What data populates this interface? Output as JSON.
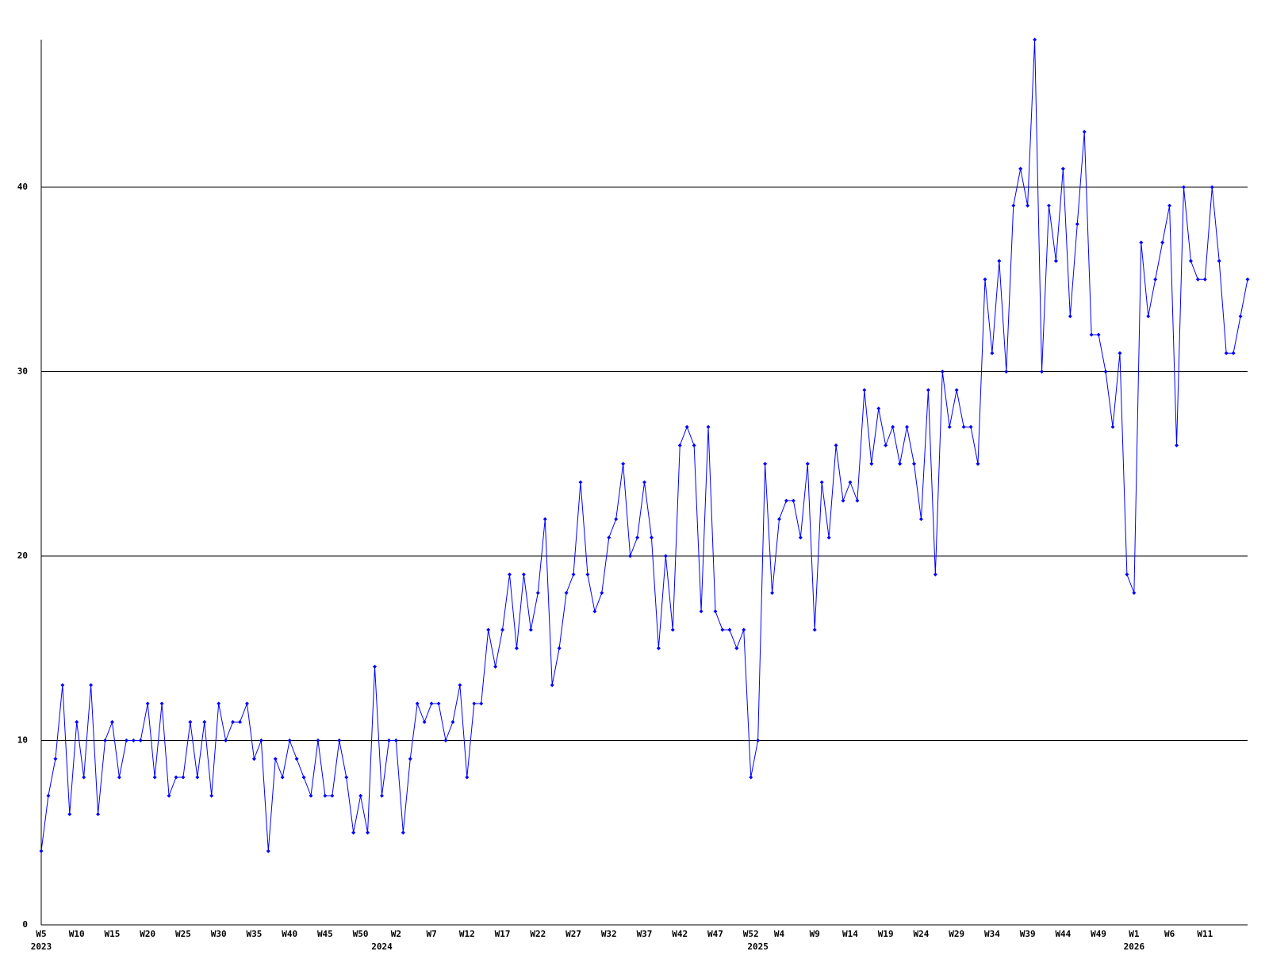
{
  "chart_data": {
    "type": "line",
    "color": "#0000ff",
    "grid": true,
    "ylim": [
      0,
      48
    ],
    "yticks": [
      0,
      10,
      20,
      30,
      40
    ],
    "categories": [
      "W5",
      null,
      null,
      null,
      null,
      "W10",
      null,
      null,
      null,
      null,
      "W15",
      null,
      null,
      null,
      null,
      "W20",
      null,
      null,
      null,
      null,
      "W25",
      null,
      null,
      null,
      null,
      "W30",
      null,
      null,
      null,
      null,
      "W35",
      null,
      null,
      null,
      null,
      "W40",
      null,
      null,
      null,
      null,
      "W45",
      null,
      null,
      null,
      null,
      "W50",
      null,
      null,
      null,
      null,
      "W2",
      null,
      null,
      null,
      null,
      "W7",
      null,
      null,
      null,
      null,
      "W12",
      null,
      null,
      null,
      null,
      "W17",
      null,
      null,
      null,
      null,
      "W22",
      null,
      null,
      null,
      null,
      "W27",
      null,
      null,
      null,
      null,
      "W32",
      null,
      null,
      null,
      null,
      "W37",
      null,
      null,
      null,
      null,
      "W42",
      null,
      null,
      null,
      null,
      "W47",
      null,
      null,
      null,
      null,
      "W52",
      null,
      null,
      null,
      "W4",
      null,
      null,
      null,
      null,
      "W9",
      null,
      null,
      null,
      null,
      "W14",
      null,
      null,
      null,
      null,
      "W19",
      null,
      null,
      null,
      null,
      "W24",
      null,
      null,
      null,
      null,
      "W29",
      null,
      null,
      null,
      null,
      "W34",
      null,
      null,
      null,
      null,
      "W39",
      null,
      null,
      null,
      null,
      "W44",
      null,
      null,
      null,
      null,
      "W49",
      null,
      null,
      null,
      null,
      "W1",
      null,
      null,
      null,
      null,
      "W6",
      null,
      null,
      null,
      null,
      "W11",
      null,
      null,
      null,
      null,
      null,
      null
    ],
    "x_year_labels": [
      "2023",
      null,
      null,
      null,
      null,
      null,
      null,
      null,
      null,
      null,
      null,
      null,
      null,
      null,
      null,
      null,
      null,
      null,
      null,
      null,
      null,
      null,
      null,
      null,
      null,
      null,
      null,
      null,
      null,
      null,
      null,
      null,
      null,
      null,
      null,
      null,
      null,
      null,
      null,
      null,
      null,
      null,
      null,
      null,
      null,
      null,
      null,
      null,
      "2024",
      null,
      null,
      null,
      null,
      null,
      null,
      null,
      null,
      null,
      null,
      null,
      null,
      null,
      null,
      null,
      null,
      null,
      null,
      null,
      null,
      null,
      null,
      null,
      null,
      null,
      null,
      null,
      null,
      null,
      null,
      null,
      null,
      null,
      null,
      null,
      null,
      null,
      null,
      null,
      null,
      null,
      null,
      null,
      null,
      null,
      null,
      null,
      null,
      null,
      null,
      null,
      null,
      "2025",
      null,
      null,
      null,
      null,
      null,
      null,
      null,
      null,
      null,
      null,
      null,
      null,
      null,
      null,
      null,
      null,
      null,
      null,
      null,
      null,
      null,
      null,
      null,
      null,
      null,
      null,
      null,
      null,
      null,
      null,
      null,
      null,
      null,
      null,
      null,
      null,
      null,
      null,
      null,
      null,
      null,
      null,
      null,
      null,
      null,
      null,
      null,
      null,
      null,
      null,
      null,
      null,
      "2026",
      null,
      null,
      null,
      null,
      null,
      null,
      null,
      null,
      null,
      null,
      null,
      null,
      null,
      null,
      null,
      null
    ],
    "values": [
      4,
      7,
      9,
      13,
      6,
      11,
      8,
      13,
      6,
      10,
      11,
      8,
      10,
      10,
      10,
      12,
      8,
      12,
      7,
      8,
      8,
      11,
      8,
      11,
      7,
      12,
      10,
      11,
      11,
      12,
      9,
      10,
      4,
      9,
      8,
      10,
      9,
      8,
      7,
      10,
      7,
      7,
      10,
      8,
      5,
      7,
      5,
      14,
      7,
      10,
      10,
      5,
      9,
      12,
      11,
      12,
      12,
      10,
      11,
      13,
      8,
      12,
      12,
      16,
      14,
      16,
      19,
      15,
      19,
      16,
      18,
      22,
      13,
      15,
      18,
      19,
      24,
      19,
      17,
      18,
      21,
      22,
      25,
      20,
      21,
      24,
      21,
      15,
      20,
      16,
      26,
      27,
      26,
      17,
      27,
      17,
      16,
      16,
      15,
      16,
      8,
      10,
      25,
      18,
      22,
      23,
      23,
      21,
      25,
      16,
      24,
      21,
      26,
      23,
      24,
      23,
      29,
      25,
      28,
      26,
      27,
      25,
      27,
      25,
      22,
      29,
      19,
      30,
      27,
      29,
      27,
      27,
      25,
      35,
      31,
      36,
      30,
      39,
      41,
      39,
      48,
      30,
      39,
      36,
      41,
      33,
      38,
      43,
      32,
      32,
      30,
      27,
      31,
      19,
      18,
      37,
      33,
      35,
      37,
      39,
      26,
      40,
      36,
      35,
      35,
      40,
      36,
      31,
      31,
      33,
      35
    ]
  }
}
